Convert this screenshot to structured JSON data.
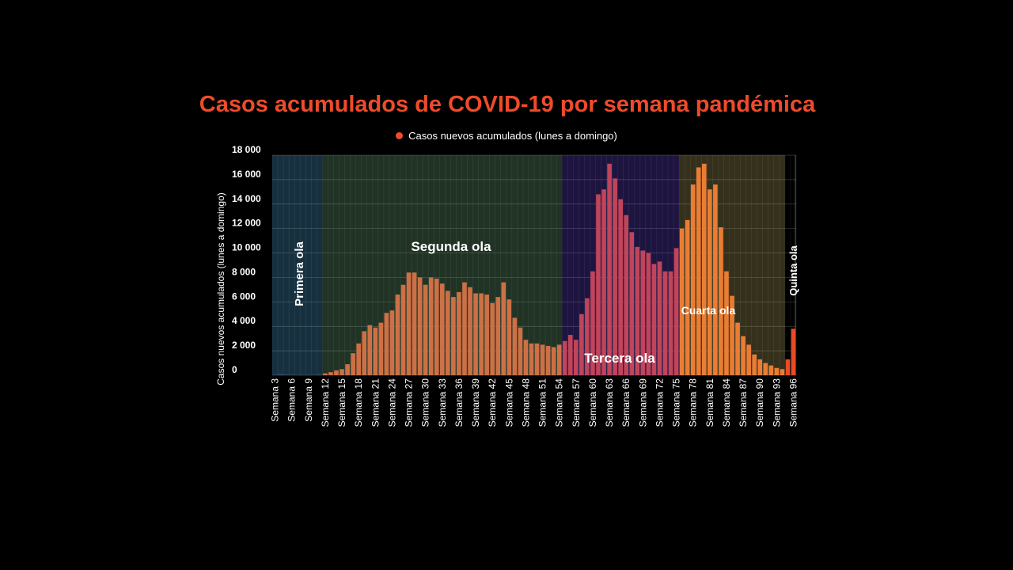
{
  "chart_data": {
    "type": "bar",
    "title": "Casos acumulados de COVID-19 por semana pandémica",
    "legend": "Casos nuevos acumulados (lunes a domingo)",
    "ylabel": "Casos nuevos acumulados (lunes a domingo)",
    "xlabel": "",
    "ylim": [
      0,
      18000
    ],
    "y_ticks": [
      0,
      2000,
      4000,
      6000,
      8000,
      10000,
      12000,
      14000,
      16000,
      18000
    ],
    "y_tick_labels": [
      "0",
      "2 000",
      "4 000",
      "6 000",
      "8 000",
      "10 000",
      "12 000",
      "14 000",
      "16 000",
      "18 000"
    ],
    "grid": true,
    "x_tick_labels": [
      "Semana 3",
      "Semana 6",
      "Semana 9",
      "Semana 12",
      "Semana 15",
      "Semana 18",
      "Semana 21",
      "Semana 24",
      "Semana 27",
      "Semana 30",
      "Semana 33",
      "Semana 36",
      "Semana 39",
      "Semana 42",
      "Semana 45",
      "Semana 48",
      "Semana 51",
      "Semana 54",
      "Semana 57",
      "Semana 60",
      "Semana 63",
      "Semana 66",
      "Semana 69",
      "Semana 72",
      "Semana 75",
      "Semana 78",
      "Semana 81",
      "Semana 84",
      "Semana 87",
      "Semana 90",
      "Semana 93",
      "Semana 96"
    ],
    "weeks_first": 3,
    "values": [
      60,
      120,
      80,
      50,
      30,
      20,
      20,
      40,
      80,
      150,
      250,
      400,
      500,
      900,
      1800,
      2600,
      3600,
      4100,
      3900,
      4300,
      5100,
      5300,
      6600,
      7400,
      8400,
      8400,
      8000,
      7400,
      8000,
      7900,
      7500,
      6900,
      6400,
      6800,
      7600,
      7200,
      6700,
      6700,
      6600,
      5900,
      6400,
      7600,
      6200,
      4700,
      3900,
      2900,
      2600,
      2600,
      2500,
      2400,
      2300,
      2500,
      2800,
      3300,
      2900,
      5000,
      6300,
      8500,
      14800,
      15200,
      17300,
      16100,
      14400,
      13100,
      11700,
      10500,
      10200,
      10000,
      9100,
      9300,
      8500,
      8500,
      10400,
      12000,
      12700,
      15600,
      17000,
      17300,
      15200,
      15600,
      12100,
      8500,
      6500,
      4300,
      3200,
      2500,
      1700,
      1300,
      1000,
      800,
      600,
      500,
      1300,
      3800
    ],
    "bar_colors": {
      "primera": "#2e4a66",
      "segunda": "#cd7046",
      "tercera": "#c0445a",
      "cuarta": "#ea7d33",
      "quinta": "#ea4b24"
    },
    "waves": [
      {
        "label": "Primera ola",
        "from_week": 3,
        "to_week": 11,
        "bg": "#16303f",
        "orientation": "vertical"
      },
      {
        "label": "Segunda ola",
        "from_week": 12,
        "to_week": 54,
        "bg": "#203324",
        "orientation": "horizontal"
      },
      {
        "label": "Tercera ola",
        "from_week": 55,
        "to_week": 75,
        "bg": "#1e1440",
        "orientation": "horizontal"
      },
      {
        "label": "Cuarta ola",
        "from_week": 76,
        "to_week": 94,
        "bg": "#34301b",
        "orientation": "horizontal"
      },
      {
        "label": "Quinta ola",
        "from_week": 95,
        "to_week": 96,
        "bg": "#000000",
        "orientation": "vertical"
      }
    ],
    "legend_color": "#ee4b2b"
  }
}
